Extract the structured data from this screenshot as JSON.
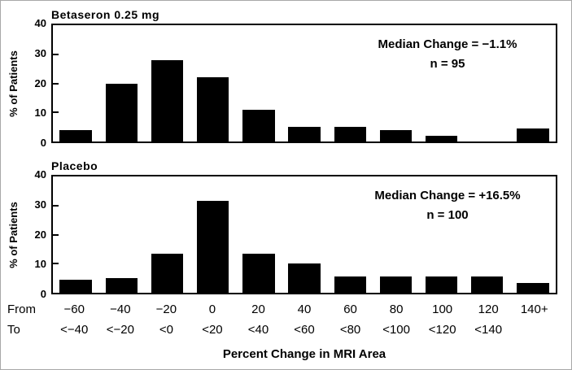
{
  "figure": {
    "background": "#ffffff",
    "bar_color": "#000000",
    "text_color": "#000000",
    "xaxis": {
      "title": "Percent Change in MRI Area",
      "from_label": "From",
      "to_label": "To",
      "from_values": [
        "−60",
        "−40",
        "−20",
        "0",
        "20",
        "40",
        "60",
        "80",
        "100",
        "120",
        "140+"
      ],
      "to_values": [
        "<−40",
        "<−20",
        "<0",
        "<20",
        "<40",
        "<60",
        "<80",
        "<100",
        "<120",
        "<140",
        ""
      ]
    }
  },
  "chart_data": [
    {
      "type": "bar",
      "title": "Betaseron 0.25 mg",
      "annotation": {
        "line1": "Median Change = −1.1%",
        "line2": "n = 95"
      },
      "ylabel": "% of Patients",
      "xlabel": "Percent Change in MRI Area",
      "ylim": [
        0,
        40
      ],
      "yticks": [
        0,
        10,
        20,
        30,
        40
      ],
      "grid": false,
      "categories": [
        "−60 to <−40",
        "−40 to <−20",
        "−20 to <0",
        "0 to <20",
        "20 to <40",
        "40 to <60",
        "60 to <80",
        "80 to <100",
        "100 to <120",
        "120 to <140",
        "140+"
      ],
      "values": [
        4,
        20,
        28,
        22,
        11,
        5,
        5,
        4,
        2,
        0,
        4.5
      ]
    },
    {
      "type": "bar",
      "title": "Placebo",
      "annotation": {
        "line1": "Median Change = +16.5%",
        "line2": "n = 100"
      },
      "ylabel": "% of Patients",
      "xlabel": "Percent Change in MRI Area",
      "ylim": [
        0,
        40
      ],
      "yticks": [
        0,
        10,
        20,
        30,
        40
      ],
      "grid": false,
      "categories": [
        "−60 to <−40",
        "−40 to <−20",
        "−20 to <0",
        "0 to <20",
        "20 to <40",
        "40 to <60",
        "60 to <80",
        "80 to <100",
        "100 to <120",
        "120 to <140",
        "140+"
      ],
      "values": [
        4.5,
        5,
        13.5,
        31.5,
        13.5,
        10,
        5.5,
        5.5,
        5.5,
        5.5,
        3.5
      ]
    }
  ]
}
